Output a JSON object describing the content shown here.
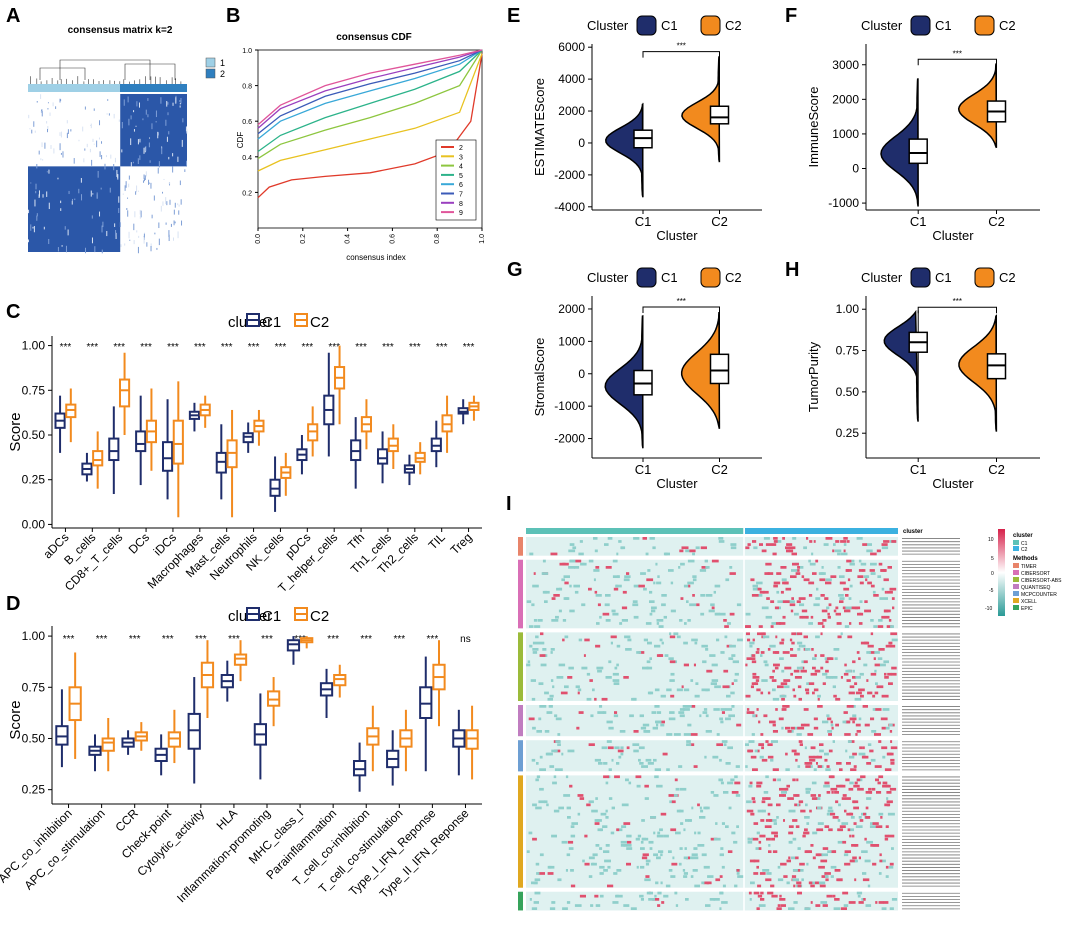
{
  "colors": {
    "c1": "#1f2d6b",
    "c2": "#f28a1e",
    "heatHigh": "#d6204a",
    "heatMid": "#ffffff",
    "heatLow": "#2a9a96"
  },
  "panels": {
    "A": {
      "label": "A",
      "title": "consensus matrix k=2",
      "legend": [
        "1",
        "2"
      ]
    },
    "B": {
      "label": "B",
      "title": "consensus CDF",
      "xlabel": "consensus index",
      "ylabel": "CDF",
      "xticks": [
        "0.0",
        "0.2",
        "0.4",
        "0.6",
        "0.8",
        "1.0"
      ],
      "yticks": [
        "0.2",
        "0.4",
        "0.6",
        "0.8",
        "1.0"
      ],
      "legend": [
        "2",
        "3",
        "4",
        "5",
        "6",
        "7",
        "8",
        "9"
      ]
    },
    "C": {
      "label": "C",
      "legend_title": "cluster",
      "legend": [
        "C1",
        "C2"
      ],
      "ylabel": "Score",
      "yticks": [
        "0.00",
        "0.25",
        "0.50",
        "0.75",
        "1.00"
      ]
    },
    "D": {
      "label": "D",
      "legend_title": "cluster",
      "legend": [
        "C1",
        "C2"
      ],
      "ylabel": "Score",
      "yticks": [
        "0.25",
        "0.50",
        "0.75",
        "1.00"
      ]
    },
    "E": {
      "label": "E"
    },
    "F": {
      "label": "F"
    },
    "G": {
      "label": "G"
    },
    "H": {
      "label": "H"
    },
    "I": {
      "label": "I",
      "legend_cluster_title": "cluster",
      "legend_methods_title": "Methods",
      "cluster_levels": [
        "C1",
        "C2"
      ],
      "methods": [
        "TIMER",
        "CIBERSORT",
        "CIBERSORT-ABS",
        "QUANTISEQ",
        "MCPCOUNTER",
        "XCELL",
        "EPIC"
      ],
      "method_colors": [
        "#e8846a",
        "#d96fb6",
        "#9bbb3a",
        "#c07dc0",
        "#6d9fd3",
        "#e0a820",
        "#36a35b"
      ],
      "scale_ticks": [
        "10",
        "5",
        "0",
        "-5",
        "-10"
      ],
      "group_rows": [
        6,
        22,
        22,
        10,
        10,
        36,
        6
      ]
    }
  },
  "chart_data": [
    {
      "type": "line",
      "id": "B",
      "title": "consensus CDF",
      "xlabel": "consensus index",
      "ylabel": "CDF",
      "xlim": [
        0,
        1
      ],
      "ylim": [
        0,
        1
      ],
      "series": [
        {
          "name": "2",
          "color": "#e03a2a",
          "points": [
            [
              0,
              0.17
            ],
            [
              0.05,
              0.23
            ],
            [
              0.15,
              0.27
            ],
            [
              0.3,
              0.29
            ],
            [
              0.5,
              0.31
            ],
            [
              0.7,
              0.36
            ],
            [
              0.85,
              0.43
            ],
            [
              0.95,
              0.6
            ],
            [
              1,
              0.98
            ]
          ]
        },
        {
          "name": "3",
          "color": "#e8c220",
          "points": [
            [
              0,
              0.32
            ],
            [
              0.1,
              0.38
            ],
            [
              0.3,
              0.44
            ],
            [
              0.5,
              0.5
            ],
            [
              0.7,
              0.56
            ],
            [
              0.9,
              0.65
            ],
            [
              1,
              0.98
            ]
          ]
        },
        {
          "name": "4",
          "color": "#8dc63f",
          "points": [
            [
              0,
              0.39
            ],
            [
              0.1,
              0.47
            ],
            [
              0.3,
              0.55
            ],
            [
              0.5,
              0.62
            ],
            [
              0.7,
              0.7
            ],
            [
              0.9,
              0.8
            ],
            [
              1,
              1.0
            ]
          ]
        },
        {
          "name": "5",
          "color": "#2cb38a",
          "points": [
            [
              0,
              0.43
            ],
            [
              0.1,
              0.52
            ],
            [
              0.3,
              0.62
            ],
            [
              0.5,
              0.7
            ],
            [
              0.7,
              0.78
            ],
            [
              0.9,
              0.88
            ],
            [
              1,
              1.0
            ]
          ]
        },
        {
          "name": "6",
          "color": "#38a8d8",
          "points": [
            [
              0,
              0.5
            ],
            [
              0.1,
              0.6
            ],
            [
              0.3,
              0.7
            ],
            [
              0.5,
              0.77
            ],
            [
              0.7,
              0.84
            ],
            [
              0.9,
              0.92
            ],
            [
              1,
              1.0
            ]
          ]
        },
        {
          "name": "7",
          "color": "#3b5bb8",
          "points": [
            [
              0,
              0.53
            ],
            [
              0.1,
              0.63
            ],
            [
              0.3,
              0.74
            ],
            [
              0.5,
              0.81
            ],
            [
              0.7,
              0.87
            ],
            [
              0.9,
              0.94
            ],
            [
              1,
              1.0
            ]
          ]
        },
        {
          "name": "8",
          "color": "#9a3fbf",
          "points": [
            [
              0,
              0.56
            ],
            [
              0.1,
              0.67
            ],
            [
              0.3,
              0.77
            ],
            [
              0.5,
              0.84
            ],
            [
              0.7,
              0.9
            ],
            [
              0.9,
              0.96
            ],
            [
              1,
              1.0
            ]
          ]
        },
        {
          "name": "9",
          "color": "#e0559a",
          "points": [
            [
              0,
              0.58
            ],
            [
              0.1,
              0.69
            ],
            [
              0.3,
              0.8
            ],
            [
              0.5,
              0.87
            ],
            [
              0.7,
              0.92
            ],
            [
              0.9,
              0.97
            ],
            [
              1,
              1.0
            ]
          ]
        }
      ]
    },
    {
      "type": "box",
      "id": "C",
      "ylabel": "Score",
      "ylim": [
        -0.02,
        1.02
      ],
      "legend_title": "cluster",
      "series_names": [
        "C1",
        "C2"
      ],
      "categories": [
        "aDCs",
        "B_cells",
        "CD8+_T_cells",
        "DCs",
        "iDCs",
        "Macrophages",
        "Mast_cells",
        "Neutrophils",
        "NK_cells",
        "pDCs",
        "T_helper_cells",
        "Tfh",
        "Th1_cells",
        "Th2_cells",
        "TIL",
        "Treg"
      ],
      "signif": [
        "***",
        "***",
        "***",
        "***",
        "***",
        "***",
        "***",
        "***",
        "***",
        "***",
        "***",
        "***",
        "***",
        "***",
        "***",
        "***"
      ],
      "C1": [
        [
          0.4,
          0.54,
          0.58,
          0.62,
          0.72
        ],
        [
          0.24,
          0.28,
          0.31,
          0.34,
          0.4
        ],
        [
          0.17,
          0.36,
          0.41,
          0.48,
          0.66
        ],
        [
          0.22,
          0.41,
          0.45,
          0.52,
          0.72
        ],
        [
          0.14,
          0.3,
          0.37,
          0.46,
          0.7
        ],
        [
          0.52,
          0.59,
          0.61,
          0.63,
          0.68
        ],
        [
          0.14,
          0.29,
          0.35,
          0.4,
          0.56
        ],
        [
          0.4,
          0.46,
          0.49,
          0.51,
          0.57
        ],
        [
          0.07,
          0.16,
          0.2,
          0.25,
          0.38
        ],
        [
          0.28,
          0.36,
          0.39,
          0.42,
          0.5
        ],
        [
          0.38,
          0.56,
          0.64,
          0.72,
          0.96
        ],
        [
          0.2,
          0.36,
          0.41,
          0.47,
          0.6
        ],
        [
          0.23,
          0.34,
          0.37,
          0.42,
          0.52
        ],
        [
          0.22,
          0.29,
          0.31,
          0.33,
          0.39
        ],
        [
          0.32,
          0.41,
          0.44,
          0.48,
          0.58
        ],
        [
          0.56,
          0.62,
          0.63,
          0.65,
          0.7
        ]
      ],
      "C2": [
        [
          0.46,
          0.6,
          0.64,
          0.67,
          0.76
        ],
        [
          0.2,
          0.33,
          0.36,
          0.41,
          0.52
        ],
        [
          0.5,
          0.66,
          0.75,
          0.81,
          0.96
        ],
        [
          0.3,
          0.46,
          0.52,
          0.58,
          0.76
        ],
        [
          0.04,
          0.34,
          0.45,
          0.58,
          0.8
        ],
        [
          0.54,
          0.61,
          0.64,
          0.67,
          0.72
        ],
        [
          0.04,
          0.32,
          0.4,
          0.47,
          0.64
        ],
        [
          0.44,
          0.52,
          0.55,
          0.58,
          0.64
        ],
        [
          0.16,
          0.26,
          0.29,
          0.32,
          0.4
        ],
        [
          0.38,
          0.47,
          0.52,
          0.56,
          0.66
        ],
        [
          0.56,
          0.76,
          0.82,
          0.88,
          1.0
        ],
        [
          0.42,
          0.52,
          0.56,
          0.6,
          0.7
        ],
        [
          0.31,
          0.41,
          0.44,
          0.48,
          0.56
        ],
        [
          0.28,
          0.35,
          0.37,
          0.4,
          0.46
        ],
        [
          0.4,
          0.52,
          0.56,
          0.61,
          0.72
        ],
        [
          0.58,
          0.64,
          0.66,
          0.68,
          0.72
        ]
      ]
    },
    {
      "type": "box",
      "id": "D",
      "ylabel": "Score",
      "ylim": [
        0.18,
        1.02
      ],
      "legend_title": "cluster",
      "series_names": [
        "C1",
        "C2"
      ],
      "categories": [
        "APC_co_inhibition",
        "APC_co_stimulation",
        "CCR",
        "Check-point",
        "Cytolytic_activity",
        "HLA",
        "Inflammation-promoting",
        "MHC_class_I",
        "Parainflammation",
        "T_cell_co-inhibition",
        "T_cell_co-stimulation",
        "Type_I_IFN_Reponse",
        "Type_II_IFN_Reponse"
      ],
      "signif": [
        "***",
        "***",
        "***",
        "***",
        "***",
        "***",
        "***",
        "***",
        "***",
        "***",
        "***",
        "***",
        "ns"
      ],
      "C1": [
        [
          0.36,
          0.47,
          0.51,
          0.56,
          0.74
        ],
        [
          0.34,
          0.42,
          0.44,
          0.46,
          0.52
        ],
        [
          0.42,
          0.46,
          0.48,
          0.5,
          0.54
        ],
        [
          0.32,
          0.39,
          0.42,
          0.45,
          0.52
        ],
        [
          0.28,
          0.45,
          0.54,
          0.62,
          0.8
        ],
        [
          0.68,
          0.75,
          0.78,
          0.81,
          0.88
        ],
        [
          0.3,
          0.47,
          0.52,
          0.57,
          0.72
        ],
        [
          0.86,
          0.93,
          0.96,
          0.98,
          1.0
        ],
        [
          0.6,
          0.71,
          0.74,
          0.77,
          0.84
        ],
        [
          0.24,
          0.32,
          0.35,
          0.39,
          0.48
        ],
        [
          0.27,
          0.36,
          0.4,
          0.44,
          0.54
        ],
        [
          0.34,
          0.6,
          0.67,
          0.75,
          0.9
        ],
        [
          0.32,
          0.46,
          0.5,
          0.54,
          0.64
        ]
      ],
      "C2": [
        [
          0.4,
          0.59,
          0.67,
          0.75,
          0.92
        ],
        [
          0.34,
          0.44,
          0.48,
          0.5,
          0.6
        ],
        [
          0.44,
          0.49,
          0.51,
          0.53,
          0.58
        ],
        [
          0.38,
          0.46,
          0.5,
          0.53,
          0.64
        ],
        [
          0.6,
          0.75,
          0.81,
          0.87,
          0.98
        ],
        [
          0.78,
          0.86,
          0.89,
          0.91,
          0.98
        ],
        [
          0.56,
          0.66,
          0.69,
          0.73,
          0.8
        ],
        [
          0.94,
          0.97,
          0.98,
          0.99,
          1.0
        ],
        [
          0.7,
          0.76,
          0.79,
          0.81,
          0.86
        ],
        [
          0.34,
          0.47,
          0.51,
          0.55,
          0.66
        ],
        [
          0.34,
          0.46,
          0.5,
          0.54,
          0.64
        ],
        [
          0.56,
          0.74,
          0.8,
          0.86,
          0.98
        ],
        [
          0.3,
          0.45,
          0.5,
          0.54,
          0.66
        ]
      ]
    },
    {
      "type": "violin",
      "id": "E",
      "ylabel": "ESTIMATEScore",
      "xlabel": "Cluster",
      "ylim": [
        -4200,
        6200
      ],
      "yticks": [
        -4000,
        -2000,
        0,
        2000,
        4000,
        6000
      ],
      "categories": [
        "C1",
        "C2"
      ],
      "legend_title": "Cluster",
      "signif": "***",
      "C1": {
        "min": -3400,
        "q1": -300,
        "median": 300,
        "q3": 800,
        "max": 2600,
        "mode": 200
      },
      "C2": {
        "min": -1200,
        "q1": 1200,
        "median": 1600,
        "q3": 2300,
        "max": 5600,
        "mode": 1700
      }
    },
    {
      "type": "violin",
      "id": "F",
      "ylabel": "ImmuneScore",
      "xlabel": "Cluster",
      "ylim": [
        -1200,
        3600
      ],
      "yticks": [
        -1000,
        0,
        1000,
        2000,
        3000
      ],
      "categories": [
        "C1",
        "C2"
      ],
      "legend_title": "Cluster",
      "signif": "***",
      "C1": {
        "min": -1100,
        "q1": 150,
        "median": 450,
        "q3": 850,
        "max": 2700,
        "mode": 400
      },
      "C2": {
        "min": 600,
        "q1": 1350,
        "median": 1650,
        "q3": 1950,
        "max": 3100,
        "mode": 1700
      }
    },
    {
      "type": "violin",
      "id": "G",
      "ylabel": "StromalScore",
      "xlabel": "Cluster",
      "ylim": [
        -2600,
        2400
      ],
      "yticks": [
        -2000,
        -1000,
        0,
        1000,
        2000
      ],
      "categories": [
        "C1",
        "C2"
      ],
      "legend_title": "Cluster",
      "signif": "***",
      "C1": {
        "min": -2300,
        "q1": -650,
        "median": -300,
        "q3": 100,
        "max": 1900,
        "mode": -400
      },
      "C2": {
        "min": -1700,
        "q1": -300,
        "median": 100,
        "q3": 600,
        "max": 2000,
        "mode": 0
      }
    },
    {
      "type": "violin",
      "id": "H",
      "ylabel": "TumorPurity",
      "xlabel": "Cluster",
      "ylim": [
        0.1,
        1.08
      ],
      "yticks": [
        0.25,
        0.5,
        0.75,
        1.0
      ],
      "categories": [
        "C1",
        "C2"
      ],
      "legend_title": "Cluster",
      "signif": "***",
      "C1": {
        "min": 0.32,
        "q1": 0.74,
        "median": 0.8,
        "q3": 0.86,
        "max": 1.0,
        "mode": 0.82
      },
      "C2": {
        "min": 0.26,
        "q1": 0.58,
        "median": 0.66,
        "q3": 0.73,
        "max": 0.98,
        "mode": 0.67
      }
    }
  ]
}
